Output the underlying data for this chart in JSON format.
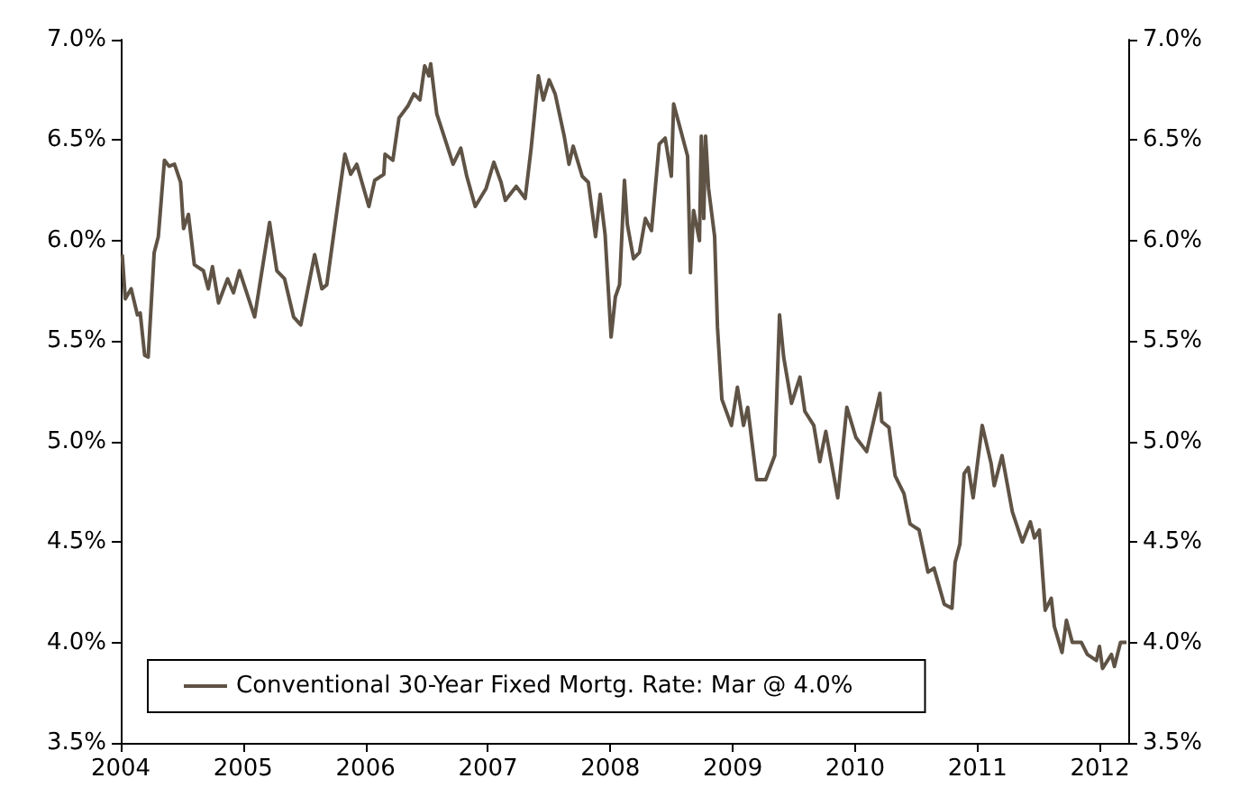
{
  "chart_data": {
    "type": "line",
    "x": [
      2004.012,
      2004.037,
      2004.085,
      2004.136,
      2004.159,
      2004.195,
      2004.224,
      2004.273,
      2004.307,
      2004.357,
      2004.395,
      2004.439,
      2004.489,
      2004.513,
      2004.553,
      2004.601,
      2004.675,
      2004.715,
      2004.749,
      2004.799,
      2004.873,
      2004.921,
      2004.97,
      2005.094,
      2005.216,
      2005.275,
      2005.338,
      2005.412,
      2005.471,
      2005.584,
      2005.643,
      2005.683,
      2005.78,
      2005.831,
      2005.879,
      2005.928,
      2006.027,
      2006.075,
      2006.149,
      2006.159,
      2006.223,
      2006.273,
      2006.346,
      2006.395,
      2006.444,
      2006.483,
      2006.517,
      2006.532,
      2006.582,
      2006.641,
      2006.715,
      2006.778,
      2006.827,
      2006.896,
      2006.985,
      2007.048,
      2007.107,
      2007.142,
      2007.231,
      2007.304,
      2007.353,
      2007.412,
      2007.452,
      2007.5,
      2007.549,
      2007.623,
      2007.662,
      2007.696,
      2007.77,
      2007.82,
      2007.879,
      2007.917,
      2007.957,
      2008.006,
      2008.041,
      2008.075,
      2008.115,
      2008.139,
      2008.189,
      2008.237,
      2008.286,
      2008.336,
      2008.399,
      2008.448,
      2008.498,
      2008.517,
      2008.561,
      2008.631,
      2008.654,
      2008.68,
      2008.728,
      2008.743,
      2008.763,
      2008.778,
      2008.802,
      2008.852,
      2008.875,
      2008.911,
      2008.989,
      2009.038,
      2009.088,
      2009.122,
      2009.195,
      2009.269,
      2009.343,
      2009.382,
      2009.416,
      2009.48,
      2009.549,
      2009.589,
      2009.662,
      2009.711,
      2009.76,
      2009.858,
      2009.932,
      2010.006,
      2010.094,
      2010.202,
      2010.217,
      2010.276,
      2010.326,
      2010.399,
      2010.448,
      2010.522,
      2010.595,
      2010.644,
      2010.728,
      2010.791,
      2010.817,
      2010.856,
      2010.89,
      2010.924,
      2010.964,
      2011.038,
      2011.111,
      2011.136,
      2011.2,
      2011.284,
      2011.366,
      2011.431,
      2011.465,
      2011.505,
      2011.553,
      2011.602,
      2011.627,
      2011.69,
      2011.726,
      2011.774,
      2011.848,
      2011.897,
      2011.971,
      2011.996,
      2012.021,
      2012.094,
      2012.118,
      2012.168,
      2012.217
    ],
    "series": [
      {
        "name": "Conventional 30-Year Fixed Mortg. Rate: Mar @ 4.0%",
        "color": "#5f5346",
        "values": [
          5.93,
          5.71,
          5.76,
          5.63,
          5.64,
          5.43,
          5.42,
          5.94,
          6.02,
          6.4,
          6.37,
          6.38,
          6.29,
          6.06,
          6.13,
          5.88,
          5.85,
          5.76,
          5.87,
          5.69,
          5.81,
          5.74,
          5.85,
          5.62,
          6.09,
          5.85,
          5.81,
          5.62,
          5.58,
          5.93,
          5.76,
          5.78,
          6.21,
          6.43,
          6.33,
          6.38,
          6.17,
          6.3,
          6.33,
          6.43,
          6.4,
          6.61,
          6.67,
          6.73,
          6.7,
          6.87,
          6.82,
          6.88,
          6.63,
          6.52,
          6.38,
          6.46,
          6.32,
          6.17,
          6.26,
          6.39,
          6.29,
          6.2,
          6.27,
          6.21,
          6.46,
          6.82,
          6.7,
          6.8,
          6.73,
          6.52,
          6.38,
          6.47,
          6.32,
          6.29,
          6.02,
          6.23,
          6.03,
          5.52,
          5.72,
          5.78,
          6.3,
          6.08,
          5.91,
          5.94,
          6.11,
          6.05,
          6.48,
          6.51,
          6.32,
          6.68,
          6.58,
          6.42,
          5.84,
          6.15,
          6.0,
          6.52,
          6.11,
          6.52,
          6.26,
          6.02,
          5.57,
          5.21,
          5.08,
          5.27,
          5.08,
          5.17,
          4.81,
          4.81,
          4.93,
          5.63,
          5.42,
          5.19,
          5.32,
          5.15,
          5.08,
          4.9,
          5.05,
          4.72,
          5.17,
          5.02,
          4.95,
          5.24,
          5.1,
          5.07,
          4.83,
          4.74,
          4.59,
          4.56,
          4.35,
          4.37,
          4.19,
          4.17,
          4.4,
          4.49,
          4.84,
          4.87,
          4.72,
          5.08,
          4.89,
          4.78,
          4.93,
          4.65,
          4.5,
          4.6,
          4.52,
          4.56,
          4.16,
          4.22,
          4.08,
          3.95,
          4.11,
          4.0,
          4.0,
          3.94,
          3.91,
          3.98,
          3.87,
          3.94,
          3.88,
          4.0,
          4.0
        ]
      }
    ],
    "xlim": [
      2004,
      2012.231
    ],
    "xticks": [
      2004,
      2005,
      2006,
      2007,
      2008,
      2009,
      2010,
      2011,
      2012
    ],
    "ylim": [
      3.5,
      7.0
    ],
    "yticks": [
      {
        "value": 3.5,
        "label": "3.5%"
      },
      {
        "value": 4.0,
        "label": "4.0%"
      },
      {
        "value": 4.5,
        "label": "4.5%"
      },
      {
        "value": 5.0,
        "label": "5.0%"
      },
      {
        "value": 5.5,
        "label": "5.5%"
      },
      {
        "value": 6.0,
        "label": "6.0%"
      },
      {
        "value": 6.5,
        "label": "6.5%"
      },
      {
        "value": 7.0,
        "label": "7.0%"
      }
    ],
    "y2lim": [
      3.5,
      7.0
    ],
    "y2ticks": [
      {
        "value": 3.5,
        "label": "3.5%"
      },
      {
        "value": 4.0,
        "label": "4.0%"
      },
      {
        "value": 4.5,
        "label": "4.5%"
      },
      {
        "value": 5.0,
        "label": "5.0%"
      },
      {
        "value": 5.5,
        "label": "5.5%"
      },
      {
        "value": 6.0,
        "label": "6.0%"
      },
      {
        "value": 6.5,
        "label": "6.5%"
      },
      {
        "value": 7.0,
        "label": "7.0%"
      }
    ],
    "grid": false,
    "legend": "bottom left",
    "line_style": "solid"
  }
}
